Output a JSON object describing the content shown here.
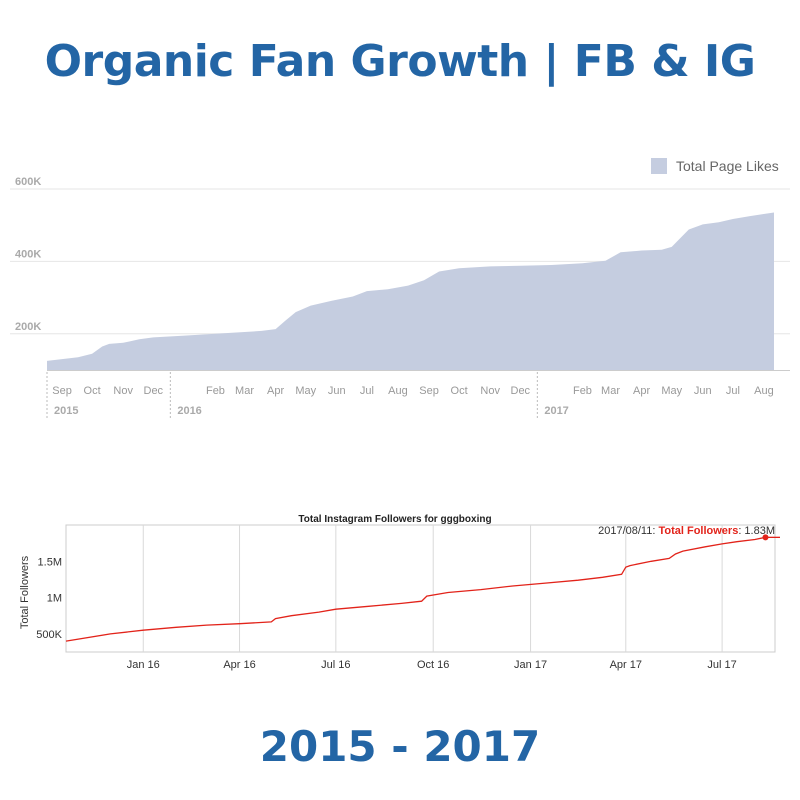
{
  "headline": "Organic Fan Growth | FB & IG",
  "years_label": "2015 - 2017",
  "chart_data": [
    {
      "type": "area",
      "title": "",
      "legend": {
        "label": "Total Page Likes",
        "placement": "top-right"
      },
      "color": "#c5cde0",
      "ylim": [
        100000,
        680000
      ],
      "y_ticks": [
        {
          "value": 200000,
          "label": "200K"
        },
        {
          "value": 400000,
          "label": "400K"
        },
        {
          "value": 600000,
          "label": "600K"
        }
      ],
      "x_domain": [
        "2015-08-31",
        "2017-08-31"
      ],
      "x_ticks": [
        {
          "date": "2015-09-15",
          "label": "Sep"
        },
        {
          "date": "2015-10-15",
          "label": "Oct"
        },
        {
          "date": "2015-11-15",
          "label": "Nov"
        },
        {
          "date": "2015-12-15",
          "label": "Dec"
        },
        {
          "date": "2016-02-15",
          "label": "Feb"
        },
        {
          "date": "2016-03-15",
          "label": "Mar"
        },
        {
          "date": "2016-04-15",
          "label": "Apr"
        },
        {
          "date": "2016-05-15",
          "label": "May"
        },
        {
          "date": "2016-06-15",
          "label": "Jun"
        },
        {
          "date": "2016-07-15",
          "label": "Jul"
        },
        {
          "date": "2016-08-15",
          "label": "Aug"
        },
        {
          "date": "2016-09-15",
          "label": "Sep"
        },
        {
          "date": "2016-10-15",
          "label": "Oct"
        },
        {
          "date": "2016-11-15",
          "label": "Nov"
        },
        {
          "date": "2016-12-15",
          "label": "Dec"
        },
        {
          "date": "2017-02-15",
          "label": "Feb"
        },
        {
          "date": "2017-03-15",
          "label": "Mar"
        },
        {
          "date": "2017-04-15",
          "label": "Apr"
        },
        {
          "date": "2017-05-15",
          "label": "May"
        },
        {
          "date": "2017-06-15",
          "label": "Jun"
        },
        {
          "date": "2017-07-15",
          "label": "Jul"
        },
        {
          "date": "2017-08-15",
          "label": "Aug"
        }
      ],
      "year_labels": [
        {
          "date": "2015-08-31",
          "label": "2015"
        },
        {
          "date": "2016-01-01",
          "label": "2016"
        },
        {
          "date": "2017-01-01",
          "label": "2017"
        }
      ],
      "series": [
        {
          "name": "Total Page Likes",
          "x": [
            "2015-08-31",
            "2015-09-15",
            "2015-10-01",
            "2015-10-15",
            "2015-10-25",
            "2015-11-01",
            "2015-11-15",
            "2015-12-01",
            "2015-12-15",
            "2016-01-15",
            "2016-02-15",
            "2016-03-15",
            "2016-04-01",
            "2016-04-15",
            "2016-04-25",
            "2016-05-05",
            "2016-05-20",
            "2016-06-10",
            "2016-07-01",
            "2016-07-15",
            "2016-08-05",
            "2016-08-25",
            "2016-09-10",
            "2016-09-25",
            "2016-10-15",
            "2016-11-15",
            "2016-12-15",
            "2017-01-15",
            "2017-02-15",
            "2017-03-10",
            "2017-03-25",
            "2017-04-15",
            "2017-05-05",
            "2017-05-15",
            "2017-06-01",
            "2017-06-15",
            "2017-07-01",
            "2017-07-15",
            "2017-08-01",
            "2017-08-25"
          ],
          "y": [
            125000,
            130000,
            135000,
            145000,
            165000,
            172000,
            175000,
            185000,
            190000,
            195000,
            200000,
            205000,
            208000,
            213000,
            237000,
            260000,
            278000,
            291000,
            303000,
            318000,
            323000,
            333000,
            348000,
            372000,
            381000,
            386000,
            388000,
            390000,
            395000,
            402000,
            425000,
            430000,
            432000,
            440000,
            488000,
            502000,
            508000,
            517000,
            525000,
            535000
          ]
        }
      ]
    },
    {
      "type": "line",
      "title": "Total Instagram Followers for gggboxing",
      "ylabel": "Total Followers",
      "color": "#e2231a",
      "ylim": [
        250000,
        2000000
      ],
      "y_ticks": [
        {
          "value": 500000,
          "label": "500K"
        },
        {
          "value": 1000000,
          "label": "1M"
        },
        {
          "value": 1500000,
          "label": "1.5M"
        }
      ],
      "x_domain": [
        "2015-10-20",
        "2017-08-20"
      ],
      "x_ticks": [
        {
          "date": "2016-01-01",
          "label": "Jan 16"
        },
        {
          "date": "2016-04-01",
          "label": "Apr 16"
        },
        {
          "date": "2016-07-01",
          "label": "Jul 16"
        },
        {
          "date": "2016-10-01",
          "label": "Oct 16"
        },
        {
          "date": "2017-01-01",
          "label": "Jan 17"
        },
        {
          "date": "2017-04-01",
          "label": "Apr 17"
        },
        {
          "date": "2017-07-01",
          "label": "Jul 17"
        }
      ],
      "tooltip": {
        "date": "2017/08/11",
        "series_label": "Total Followers",
        "value_label": "1.83M"
      },
      "series": [
        {
          "name": "Total Followers",
          "x": [
            "2015-10-20",
            "2015-12-01",
            "2016-01-01",
            "2016-02-01",
            "2016-03-01",
            "2016-04-01",
            "2016-05-01",
            "2016-05-05",
            "2016-05-20",
            "2016-06-15",
            "2016-07-01",
            "2016-08-01",
            "2016-09-01",
            "2016-09-20",
            "2016-09-25",
            "2016-10-15",
            "2016-11-15",
            "2016-12-15",
            "2017-01-15",
            "2017-02-15",
            "2017-03-10",
            "2017-03-28",
            "2017-04-01",
            "2017-04-05",
            "2017-04-25",
            "2017-05-12",
            "2017-05-18",
            "2017-05-25",
            "2017-06-15",
            "2017-07-01",
            "2017-07-15",
            "2017-08-01",
            "2017-08-11"
          ],
          "y": [
            400000,
            500000,
            550000,
            590000,
            620000,
            640000,
            665000,
            710000,
            750000,
            800000,
            840000,
            880000,
            920000,
            950000,
            1020000,
            1070000,
            1110000,
            1160000,
            1200000,
            1240000,
            1280000,
            1320000,
            1420000,
            1440000,
            1500000,
            1540000,
            1600000,
            1640000,
            1700000,
            1740000,
            1770000,
            1800000,
            1830000
          ]
        }
      ]
    }
  ]
}
